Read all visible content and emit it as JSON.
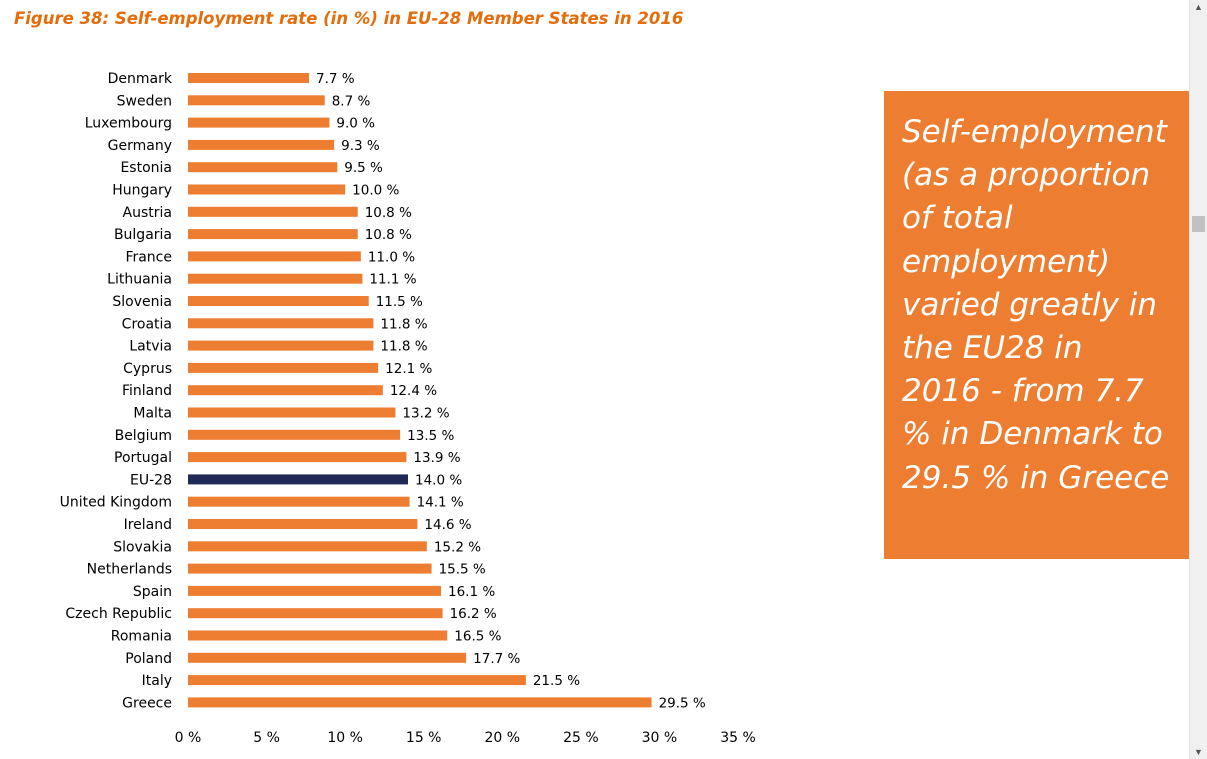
{
  "figure_title": "Figure 38: Self-employment rate (in %) in EU-28 Member States in 2016",
  "callout": {
    "text": "Self-employment (as a proportion of total employment) varied greatly in the EU28 in 2016 - from 7.7 % in Denmark to 29.5 % in Greece"
  },
  "colors": {
    "bar": "#ed7d31",
    "highlight_bar": "#1f2a56",
    "title": "#e46c0a",
    "callout_bg": "#ed7d31"
  },
  "scrollbar": {
    "up_icon": "chevron-up-icon",
    "down_icon": "chevron-down-icon"
  },
  "chart_data": {
    "type": "bar",
    "orientation": "horizontal",
    "title": "Figure 38: Self-employment rate (in %) in EU-28 Member States in 2016",
    "categories": [
      "Denmark",
      "Sweden",
      "Luxembourg",
      "Germany",
      "Estonia",
      "Hungary",
      "Austria",
      "Bulgaria",
      "France",
      "Lithuania",
      "Slovenia",
      "Croatia",
      "Latvia",
      "Cyprus",
      "Finland",
      "Malta",
      "Belgium",
      "Portugal",
      "EU-28",
      "United Kingdom",
      "Ireland",
      "Slovakia",
      "Netherlands",
      "Spain",
      "Czech Republic",
      "Romania",
      "Poland",
      "Italy",
      "Greece"
    ],
    "values": [
      7.7,
      8.7,
      9.0,
      9.3,
      9.5,
      10.0,
      10.8,
      10.8,
      11.0,
      11.1,
      11.5,
      11.8,
      11.8,
      12.1,
      12.4,
      13.2,
      13.5,
      13.9,
      14.0,
      14.1,
      14.6,
      15.2,
      15.5,
      16.1,
      16.2,
      16.5,
      17.7,
      21.5,
      29.5
    ],
    "value_labels": [
      "7.7 %",
      "8.7 %",
      "9.0 %",
      "9.3 %",
      "9.5 %",
      "10.0 %",
      "10.8 %",
      "10.8 %",
      "11.0 %",
      "11.1 %",
      "11.5 %",
      "11.8 %",
      "11.8 %",
      "12.1 %",
      "12.4 %",
      "13.2 %",
      "13.5 %",
      "13.9 %",
      "14.0 %",
      "14.1 %",
      "14.6 %",
      "15.2 %",
      "15.5 %",
      "16.1 %",
      "16.2 %",
      "16.5 %",
      "17.7 %",
      "21.5 %",
      "29.5 %"
    ],
    "highlight": "EU-28",
    "xlim": [
      0,
      35
    ],
    "xticks": [
      0,
      5,
      10,
      15,
      20,
      25,
      30,
      35
    ],
    "xtick_labels": [
      "0 %",
      "5 %",
      "10 %",
      "15 %",
      "20 %",
      "25 %",
      "30 %",
      "35 %"
    ],
    "xlabel": "",
    "ylabel": "",
    "grid": false,
    "legend": "none"
  }
}
